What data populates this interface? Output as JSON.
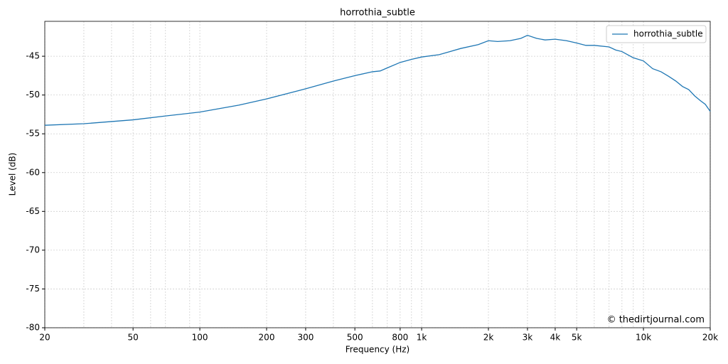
{
  "chart_data": {
    "type": "line",
    "title": "horrothia_subtle",
    "x_label": "Frequency (Hz)",
    "y_label": "Level (dB)",
    "x_scale": "log",
    "grid": true,
    "legend": "upper right",
    "annotation": "© thedirtjournal.com",
    "xlim": [
      20,
      20000
    ],
    "ylim": [
      -80,
      -40.5
    ],
    "xticks": [
      20,
      50,
      100,
      200,
      300,
      500,
      800,
      {
        "value": 1000,
        "label": "1k"
      },
      {
        "value": 2000,
        "label": "2k"
      },
      {
        "value": 3000,
        "label": "3k"
      },
      {
        "value": 4000,
        "label": "4k"
      },
      {
        "value": 5000,
        "label": "5k"
      },
      {
        "value": 10000,
        "label": "10k"
      },
      {
        "value": 20000,
        "label": "20k"
      }
    ],
    "xminorticks": [
      30,
      40,
      60,
      70,
      90,
      400,
      600,
      700,
      900,
      6000,
      7000,
      8000,
      9000
    ],
    "yticks": [
      -80,
      -75,
      -70,
      -65,
      -60,
      -55,
      -50,
      -45
    ],
    "x": [
      20,
      30,
      50,
      70,
      100,
      150,
      200,
      300,
      400,
      500,
      600,
      650,
      700,
      800,
      900,
      1000,
      1200,
      1500,
      1800,
      2000,
      2200,
      2500,
      2800,
      3000,
      3300,
      3600,
      4000,
      4500,
      5000,
      5500,
      6000,
      7000,
      7500,
      8000,
      9000,
      10000,
      11000,
      12000,
      13000,
      14000,
      15000,
      16000,
      17000,
      18000,
      19000,
      20000
    ],
    "series": [
      {
        "name": "horrothia_subtle",
        "color": "#1f77b4",
        "values": [
          -53.9,
          -53.7,
          -53.2,
          -52.7,
          -52.2,
          -51.3,
          -50.5,
          -49.2,
          -48.2,
          -47.5,
          -47.0,
          -46.9,
          -46.5,
          -45.8,
          -45.4,
          -45.1,
          -44.8,
          -44.0,
          -43.5,
          -43.0,
          -43.1,
          -43.0,
          -42.7,
          -42.3,
          -42.7,
          -42.9,
          -42.8,
          -43.0,
          -43.3,
          -43.6,
          -43.6,
          -43.8,
          -44.2,
          -44.4,
          -45.2,
          -45.6,
          -46.6,
          -47.0,
          -47.6,
          -48.2,
          -48.9,
          -49.3,
          -50.1,
          -50.7,
          -51.2,
          -52.1
        ]
      }
    ]
  }
}
